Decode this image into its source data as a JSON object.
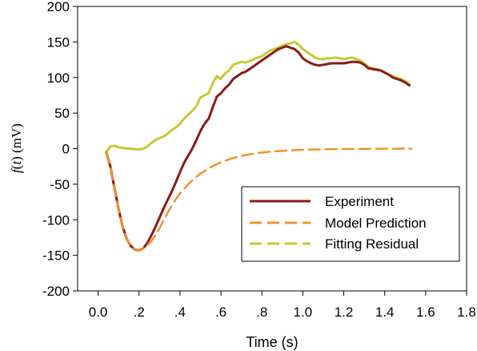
{
  "chart_data": {
    "type": "line",
    "xlabel": "Time (s)",
    "ylabel": {
      "func": "f",
      "var": "t",
      "unit": "(mV)"
    },
    "xlim": [
      -0.1,
      1.8
    ],
    "ylim": [
      -200,
      200
    ],
    "xticks": [
      {
        "v": 0.0,
        "label": "0.0"
      },
      {
        "v": 0.2,
        "label": ".2"
      },
      {
        "v": 0.4,
        "label": ".4"
      },
      {
        "v": 0.6,
        "label": ".6"
      },
      {
        "v": 0.8,
        "label": ".8"
      },
      {
        "v": 1.0,
        "label": "1.0"
      },
      {
        "v": 1.2,
        "label": "1.2"
      },
      {
        "v": 1.4,
        "label": "1.4"
      },
      {
        "v": 1.6,
        "label": "1.6"
      },
      {
        "v": 1.8,
        "label": "1.8"
      }
    ],
    "yticks": [
      {
        "v": 200,
        "label": "200"
      },
      {
        "v": 150,
        "label": "150"
      },
      {
        "v": 100,
        "label": "100"
      },
      {
        "v": 50,
        "label": "50"
      },
      {
        "v": 0,
        "label": "0"
      },
      {
        "v": -50,
        "label": "-50"
      },
      {
        "v": -100,
        "label": "-100"
      },
      {
        "v": -150,
        "label": "-150"
      },
      {
        "v": -200,
        "label": "-200"
      }
    ],
    "legend_position": "bottom-right",
    "series": [
      {
        "name": "Experiment",
        "color": "#8b1a1a",
        "style": "solid",
        "x": [
          0.04,
          0.06,
          0.08,
          0.1,
          0.12,
          0.14,
          0.16,
          0.18,
          0.2,
          0.22,
          0.24,
          0.26,
          0.28,
          0.3,
          0.32,
          0.34,
          0.36,
          0.38,
          0.4,
          0.42,
          0.44,
          0.46,
          0.48,
          0.5,
          0.52,
          0.54,
          0.56,
          0.58,
          0.6,
          0.62,
          0.64,
          0.66,
          0.68,
          0.7,
          0.72,
          0.74,
          0.76,
          0.78,
          0.8,
          0.82,
          0.84,
          0.86,
          0.88,
          0.9,
          0.92,
          0.94,
          0.96,
          0.98,
          1.0,
          1.02,
          1.04,
          1.06,
          1.08,
          1.1,
          1.12,
          1.14,
          1.16,
          1.18,
          1.2,
          1.22,
          1.24,
          1.26,
          1.28,
          1.3,
          1.32,
          1.34,
          1.36,
          1.38,
          1.4,
          1.42,
          1.44,
          1.46,
          1.48,
          1.5,
          1.52
        ],
        "y": [
          -5,
          -25,
          -55,
          -85,
          -110,
          -127,
          -137,
          -142,
          -143,
          -140,
          -133,
          -122,
          -110,
          -97,
          -84,
          -72,
          -60,
          -47,
          -33,
          -20,
          -10,
          0,
          12,
          25,
          35,
          42,
          58,
          73,
          78,
          85,
          90,
          98,
          102,
          106,
          108,
          112,
          116,
          120,
          124,
          128,
          132,
          136,
          140,
          142,
          144,
          142,
          140,
          135,
          127,
          123,
          120,
          118,
          117,
          118,
          119,
          120,
          120,
          120,
          120,
          121,
          122,
          122,
          121,
          118,
          113,
          112,
          111,
          110,
          107,
          104,
          100,
          98,
          96,
          93,
          89
        ]
      },
      {
        "name": "Model Prediction",
        "color": "#f0932b",
        "style": "dashed",
        "x": [
          0.04,
          0.06,
          0.08,
          0.1,
          0.12,
          0.14,
          0.16,
          0.18,
          0.2,
          0.22,
          0.24,
          0.26,
          0.28,
          0.3,
          0.32,
          0.34,
          0.36,
          0.38,
          0.4,
          0.45,
          0.5,
          0.55,
          0.6,
          0.65,
          0.7,
          0.75,
          0.8,
          0.85,
          0.9,
          0.95,
          1.0,
          1.05,
          1.1,
          1.15,
          1.2,
          1.25,
          1.3,
          1.35,
          1.4,
          1.45,
          1.5,
          1.53
        ],
        "y": [
          -5,
          -25,
          -55,
          -85,
          -110,
          -127,
          -137,
          -142,
          -143,
          -140,
          -136,
          -130,
          -122,
          -112,
          -101,
          -90,
          -80,
          -71,
          -63,
          -47,
          -35,
          -26,
          -19,
          -14,
          -10,
          -7.5,
          -5.5,
          -4,
          -3,
          -2.2,
          -1.6,
          -1.2,
          -0.9,
          -0.7,
          -0.5,
          -0.4,
          -0.3,
          -0.2,
          -0.15,
          -0.1,
          -0.05,
          0
        ]
      },
      {
        "name": "Fitting Residual",
        "color": "#c8c832",
        "style": "solid",
        "x": [
          0.04,
          0.06,
          0.08,
          0.1,
          0.12,
          0.14,
          0.16,
          0.18,
          0.2,
          0.22,
          0.24,
          0.26,
          0.28,
          0.3,
          0.32,
          0.34,
          0.36,
          0.38,
          0.4,
          0.42,
          0.44,
          0.46,
          0.48,
          0.5,
          0.52,
          0.54,
          0.56,
          0.58,
          0.6,
          0.62,
          0.64,
          0.66,
          0.68,
          0.7,
          0.72,
          0.74,
          0.76,
          0.78,
          0.8,
          0.82,
          0.84,
          0.86,
          0.88,
          0.9,
          0.92,
          0.94,
          0.96,
          0.98,
          1.0,
          1.02,
          1.04,
          1.06,
          1.08,
          1.1,
          1.12,
          1.14,
          1.16,
          1.18,
          1.2,
          1.22,
          1.24,
          1.26,
          1.28,
          1.3,
          1.32,
          1.34,
          1.36,
          1.38,
          1.4,
          1.42,
          1.44,
          1.46,
          1.48,
          1.5,
          1.52
        ],
        "y": [
          -5,
          3,
          4,
          2,
          1,
          0,
          0,
          -1,
          -1,
          0,
          3,
          8,
          12,
          15,
          17,
          21,
          26,
          30,
          35,
          42,
          48,
          53,
          60,
          72,
          75,
          78,
          92,
          102,
          98,
          106,
          110,
          118,
          120,
          122,
          121,
          123,
          126,
          128,
          130,
          134,
          138,
          140,
          142,
          145,
          147,
          148,
          150,
          146,
          140,
          136,
          132,
          128,
          126,
          126,
          127,
          127,
          128,
          127,
          126,
          127,
          128,
          126,
          124,
          120,
          115,
          113,
          112,
          110,
          107,
          104,
          102,
          100,
          98,
          95,
          90
        ]
      }
    ]
  }
}
